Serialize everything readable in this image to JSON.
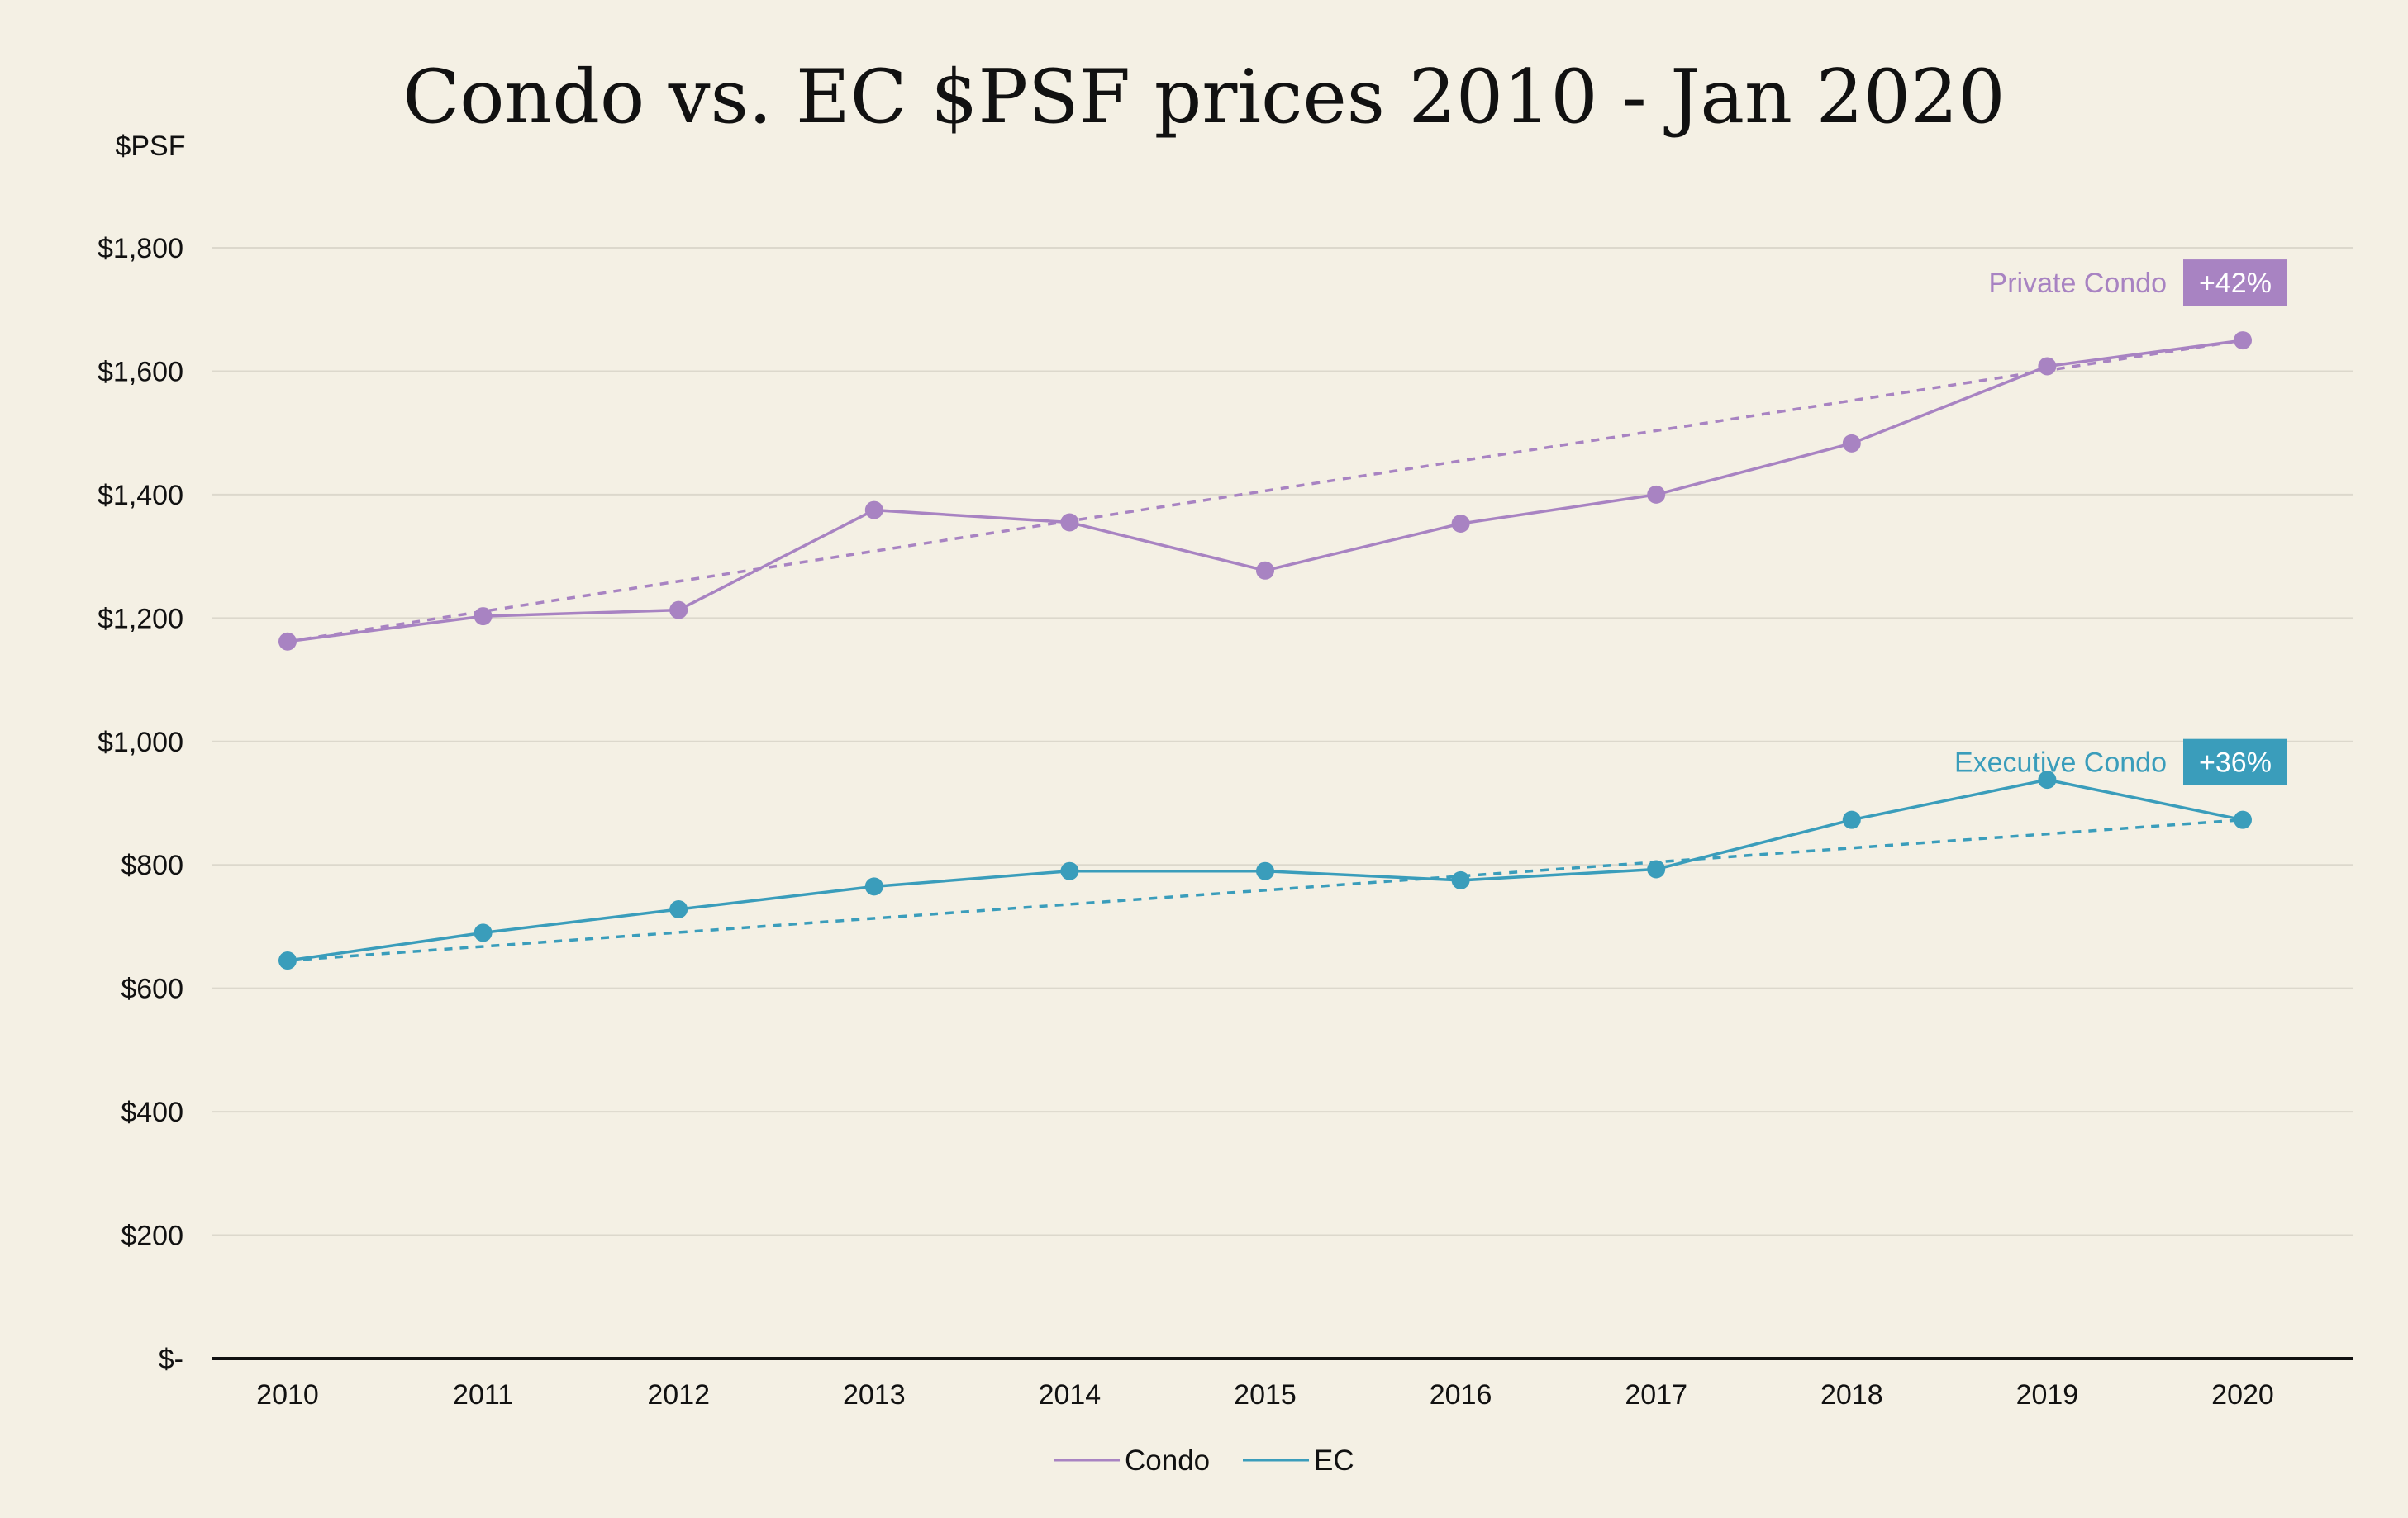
{
  "chart_data": {
    "type": "line",
    "title": "Condo vs. EC $PSF prices 2010 - Jan 2020",
    "ylabel": "$PSF",
    "xlabel": "",
    "categories": [
      "2010",
      "2011",
      "2012",
      "2013",
      "2014",
      "2015",
      "2016",
      "2017",
      "2018",
      "2019",
      "2020"
    ],
    "y_ticks": [
      "$-",
      "$200",
      "$400",
      "$600",
      "$800",
      "$1,000",
      "$1,200",
      "$1,400",
      "$1,600",
      "$1,800"
    ],
    "ylim": [
      0,
      1800
    ],
    "grid": true,
    "legend_position": "bottom",
    "series": [
      {
        "name": "Condo",
        "color": "#a883c2",
        "values": [
          1162,
          1203,
          1213,
          1375,
          1355,
          1277,
          1353,
          1400,
          1483,
          1608,
          1650
        ],
        "trend": [
          1162,
          1650
        ],
        "label": "Private Condo",
        "change": "+42%"
      },
      {
        "name": "EC",
        "color": "#3a9dbb",
        "values": [
          645,
          690,
          728,
          765,
          790,
          790,
          775,
          793,
          873,
          938,
          873
        ],
        "trend": [
          645,
          873
        ],
        "label": "Executive Condo",
        "change": "+36%"
      }
    ]
  }
}
